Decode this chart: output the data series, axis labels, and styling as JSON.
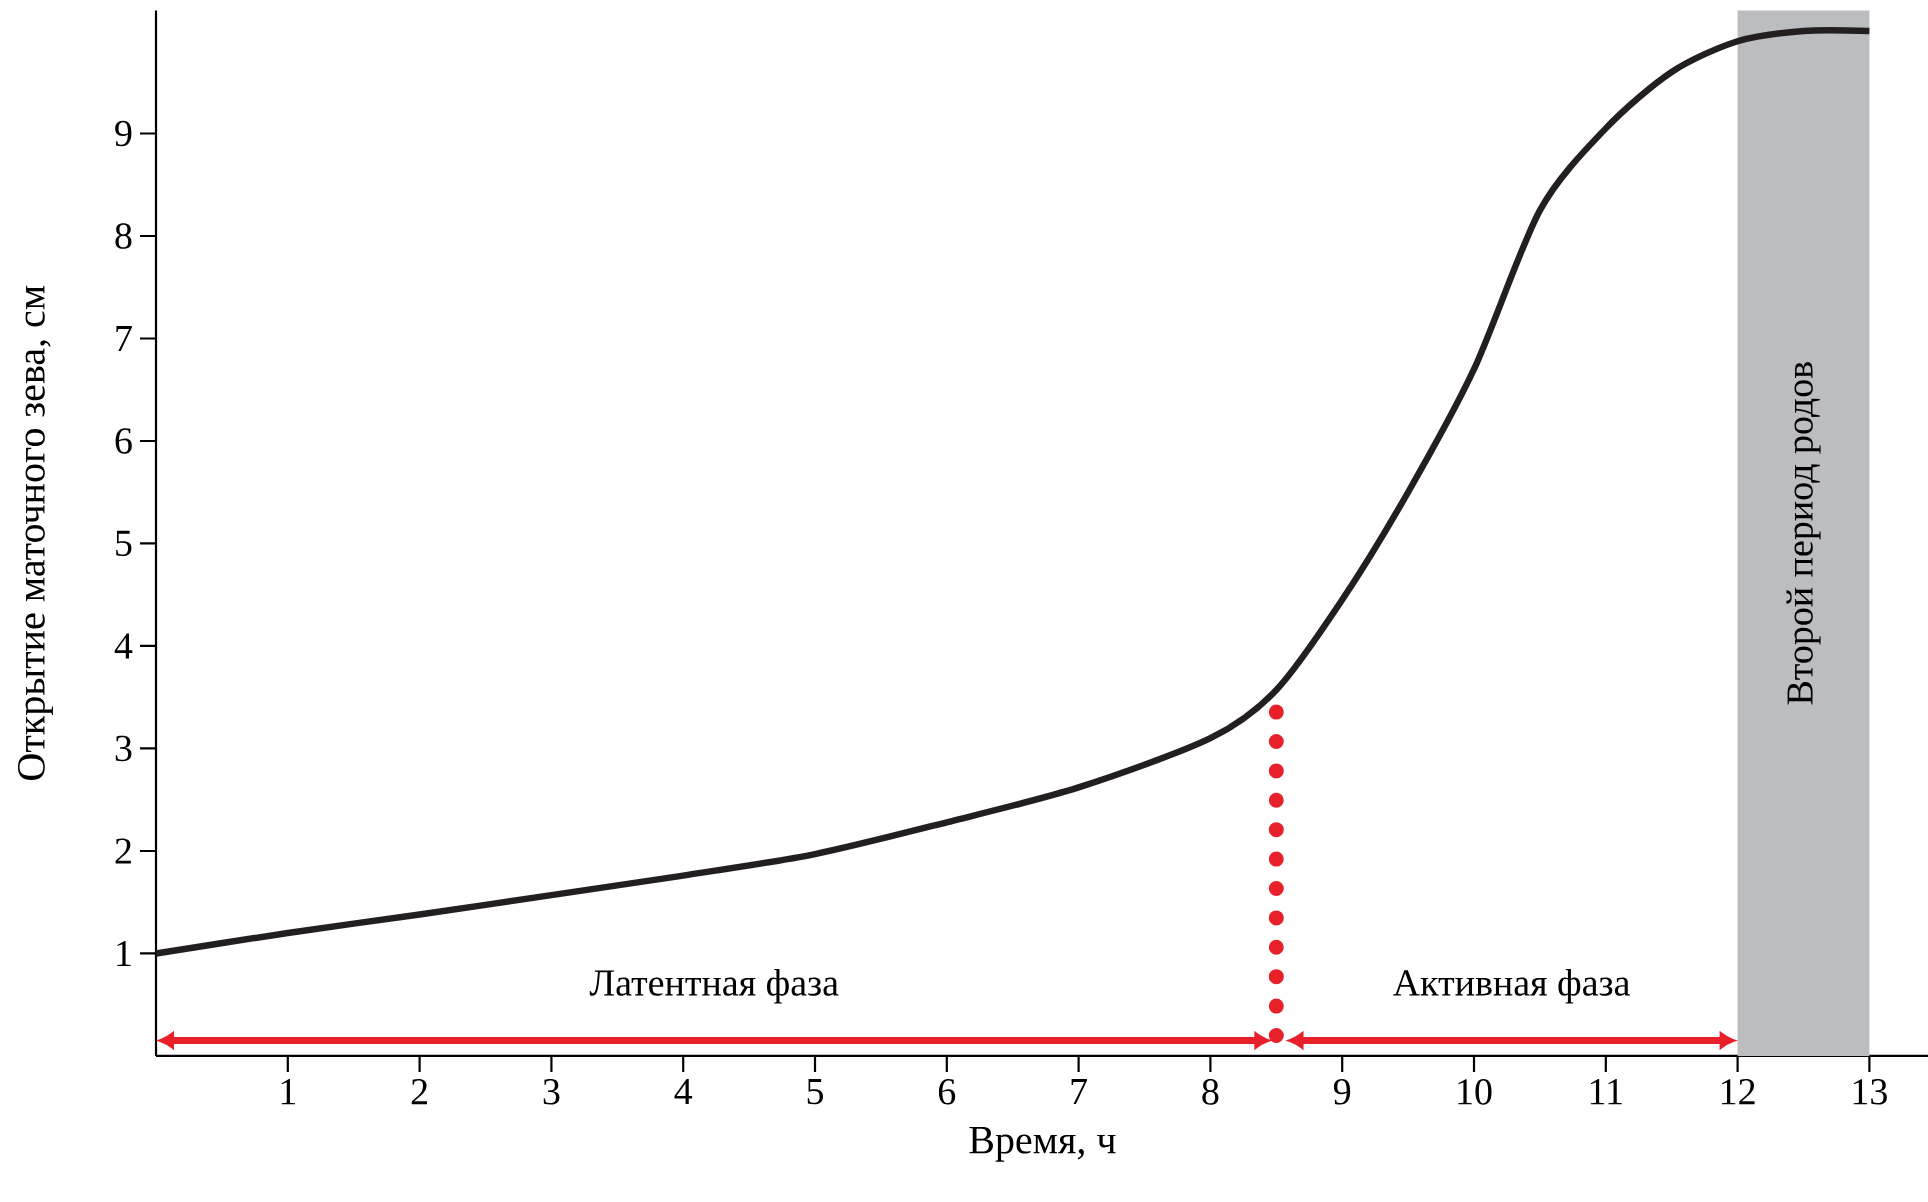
{
  "chart_data": {
    "type": "line",
    "xlabel": "Время, ч",
    "ylabel": "Открытие маточного зева, см",
    "x": [
      0,
      1,
      2,
      3,
      4,
      5,
      6,
      7,
      8,
      8.5,
      9,
      9.5,
      10,
      10.5,
      11,
      11.5,
      12,
      12.5,
      13
    ],
    "series": [
      {
        "color": "#231f20",
        "values": [
          1.0,
          1.2,
          1.38,
          1.57,
          1.76,
          1.97,
          2.28,
          2.62,
          3.1,
          3.57,
          4.45,
          5.5,
          6.7,
          8.25,
          9.05,
          9.6,
          9.9,
          10.0,
          10.0
        ]
      }
    ],
    "xlim": [
      0,
      13.45
    ],
    "ylim": [
      0,
      10.2
    ],
    "xticks": [
      1,
      2,
      3,
      4,
      5,
      6,
      7,
      8,
      9,
      10,
      11,
      12,
      13
    ],
    "yticks": [
      1,
      2,
      3,
      4,
      5,
      6,
      7,
      8,
      9
    ],
    "grid": false,
    "marker": "none",
    "line_style": "solid",
    "ref_lines": [
      {
        "axis": "x",
        "value": 8.5,
        "color": "#e8202a",
        "line_style": "dotted"
      }
    ],
    "annotations": [
      "Латентная фаза",
      "Активная фаза"
    ],
    "bands": [
      {
        "axis": "x",
        "from": 12,
        "to": 13,
        "label": "Второй период родов",
        "color": "#bcbdc0"
      }
    ]
  }
}
